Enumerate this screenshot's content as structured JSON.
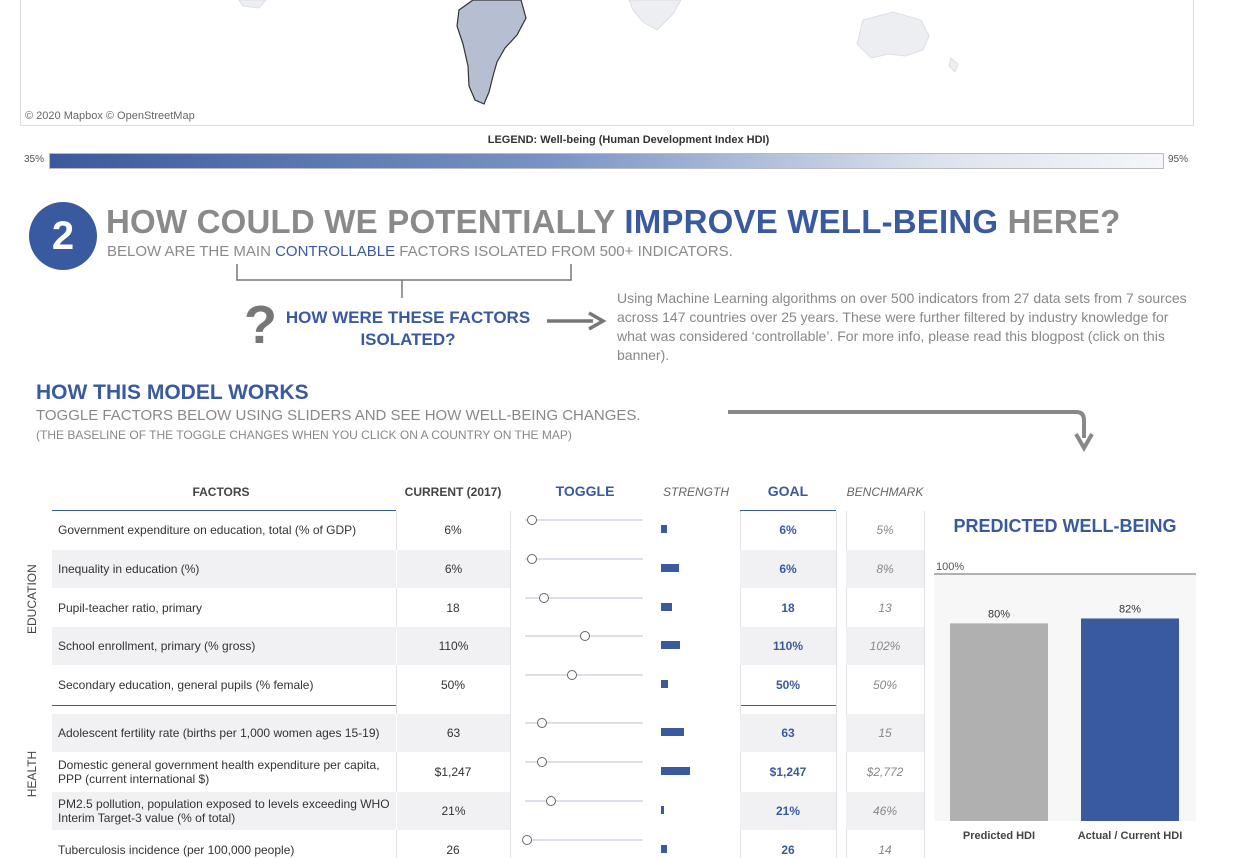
{
  "map": {
    "attribution": "© 2020 Mapbox © OpenStreetMap"
  },
  "legend": {
    "title": "LEGEND: Well-being (Human Development Index HDI)",
    "min": "35%",
    "max": "95%"
  },
  "section": {
    "number": "2",
    "headline_pre": "HOW COULD WE POTENTIALLY ",
    "headline_hl": "IMPROVE WELL-BEING",
    "headline_post": " HERE?",
    "sub_pre": "BELOW ARE THE MAIN ",
    "sub_hl": "CONTROLLABLE",
    "sub_post": " FACTORS ISOLATED FROM 500+ INDICATORS."
  },
  "question": {
    "label_line1": "HOW WERE THESE FACTORS",
    "label_line2": "ISOLATED?",
    "explanation": "Using Machine Learning algorithms on over 500 indicators from 27 data sets from 7 sources across 147 countries over 25 years. These were further filtered by industry knowledge for what was considered ‘controllable’. For more info, please read this blogpost (click on this banner)."
  },
  "model": {
    "title": "HOW THIS MODEL WORKS",
    "subtitle": "TOGGLE FACTORS BELOW USING SLIDERS AND SEE HOW WELL-BEING CHANGES.",
    "note": "(THE BASELINE OF THE TOGGLE CHANGES WHEN YOU CLICK ON A COUNTRY ON THE MAP)"
  },
  "table": {
    "headers": {
      "factors": "FACTORS",
      "current": "CURRENT (2017)",
      "toggle": "TOGGLE",
      "strength": "STRENGTH",
      "goal": "GOAL",
      "benchmark": "BENCHMARK"
    },
    "groups": [
      "EDUCATION",
      "HEALTH"
    ],
    "rows": [
      {
        "factor": "Government expenditure on education, total (% of GDP)",
        "current": "6%",
        "goal": "6%",
        "benchmark": "5%",
        "slider": 0.06,
        "strength": 0.12
      },
      {
        "factor": "Inequality in education (%)",
        "current": "6%",
        "goal": "6%",
        "benchmark": "8%",
        "slider": 0.06,
        "strength": 0.36
      },
      {
        "factor": "Pupil-teacher ratio, primary",
        "current": "18",
        "goal": "18",
        "benchmark": "13",
        "slider": 0.16,
        "strength": 0.22
      },
      {
        "factor": "School enrollment, primary (% gross)",
        "current": "110%",
        "goal": "110%",
        "benchmark": "102%",
        "slider": 0.51,
        "strength": 0.38
      },
      {
        "factor": "Secondary education, general pupils (% female)",
        "current": "50%",
        "goal": "50%",
        "benchmark": "50%",
        "slider": 0.4,
        "strength": 0.14
      },
      {
        "factor": "Adolescent fertility rate (births per 1,000 women ages 15-19)",
        "current": "63",
        "goal": "63",
        "benchmark": "15",
        "slider": 0.14,
        "strength": 0.45
      },
      {
        "factor": "Domestic general government health expenditure per capita, PPP (current international $)",
        "current": "$1,247",
        "goal": "$1,247",
        "benchmark": "$2,772",
        "slider": 0.14,
        "strength": 0.57
      },
      {
        "factor": "PM2.5 pollution, population exposed to levels exceeding WHO Interim Target-3 value (% of total)",
        "current": "21%",
        "goal": "21%",
        "benchmark": "46%",
        "slider": 0.22,
        "strength": 0.05
      },
      {
        "factor": "Tuberculosis incidence (per 100,000 people)",
        "current": "26",
        "goal": "26",
        "benchmark": "14",
        "slider": 0.02,
        "strength": 0.12
      }
    ]
  },
  "predicted": {
    "title": "PREDICTED WELL-BEING",
    "chart_data": {
      "type": "bar",
      "categories": [
        "Predicted HDI",
        "Actual / Current HDI"
      ],
      "values": [
        80,
        82
      ],
      "value_labels": [
        "80%",
        "82%"
      ],
      "ylim": [
        0,
        100
      ],
      "ref_label": "100%",
      "colors": [
        "#b0b0b0",
        "#3a5aa0"
      ]
    }
  }
}
